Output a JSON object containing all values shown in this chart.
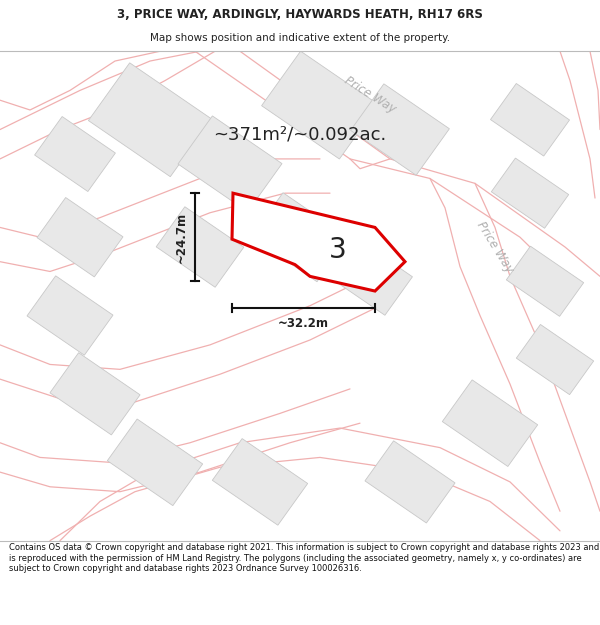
{
  "title_line1": "3, PRICE WAY, ARDINGLY, HAYWARDS HEATH, RH17 6RS",
  "title_line2": "Map shows position and indicative extent of the property.",
  "footer": "Contains OS data © Crown copyright and database right 2021. This information is subject to Crown copyright and database rights 2023 and is reproduced with the permission of HM Land Registry. The polygons (including the associated geometry, namely x, y co-ordinates) are subject to Crown copyright and database rights 2023 Ordnance Survey 100026316.",
  "area_label": "~371m²/~0.092ac.",
  "width_label": "~32.2m",
  "height_label": "~24.7m",
  "plot_number": "3",
  "map_bg": "#ffffff",
  "building_fill": "#e8e8e8",
  "building_edge": "#c8c8c8",
  "road_line_color": "#f0b0b0",
  "highlight_color": "#dd0000",
  "text_color": "#222222",
  "dim_line_color": "#111111",
  "street_label_color": "#b0b0b0",
  "title_fontsize": 8.5,
  "subtitle_fontsize": 7.5,
  "footer_fontsize": 6.0
}
